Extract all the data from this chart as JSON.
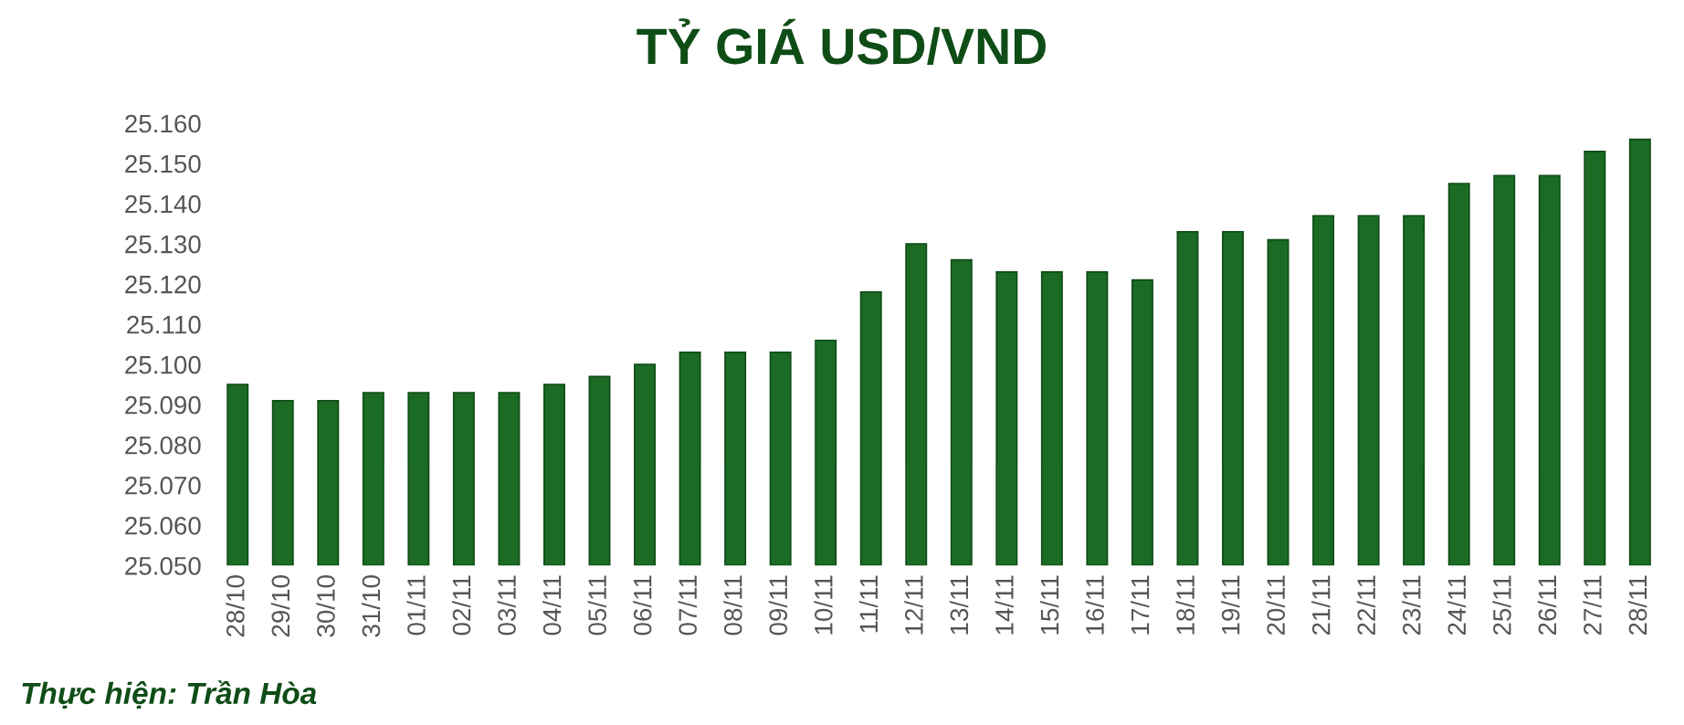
{
  "chart_data": {
    "type": "bar",
    "title": "TỶ GIÁ USD/VND",
    "categories": [
      "28/10",
      "29/10",
      "30/10",
      "31/10",
      "01/11",
      "02/11",
      "03/11",
      "04/11",
      "05/11",
      "06/11",
      "07/11",
      "08/11",
      "09/11",
      "10/11",
      "11/11",
      "12/11",
      "13/11",
      "14/11",
      "15/11",
      "16/11",
      "17/11",
      "18/11",
      "19/11",
      "20/11",
      "21/11",
      "22/11",
      "23/11",
      "24/11",
      "25/11",
      "26/11",
      "27/11",
      "28/11"
    ],
    "values": [
      25095,
      25091,
      25091,
      25093,
      25093,
      25093,
      25093,
      25095,
      25097,
      25100,
      25103,
      25103,
      25103,
      25106,
      25118,
      25130,
      25126,
      25123,
      25123,
      25123,
      25121,
      25133,
      25133,
      25131,
      25137,
      25137,
      25137,
      25145,
      25147,
      25147,
      25153,
      25156
    ],
    "color": "#1b6b24",
    "ylim": [
      25050,
      25160
    ],
    "yticks": [
      {
        "value": 25050,
        "label": "25.050"
      },
      {
        "value": 25060,
        "label": "25.060"
      },
      {
        "value": 25070,
        "label": "25.070"
      },
      {
        "value": 25080,
        "label": "25.080"
      },
      {
        "value": 25090,
        "label": "25.090"
      },
      {
        "value": 25100,
        "label": "25.100"
      },
      {
        "value": 25110,
        "label": "25.110"
      },
      {
        "value": 25120,
        "label": "25.120"
      },
      {
        "value": 25130,
        "label": "25.130"
      },
      {
        "value": 25140,
        "label": "25.140"
      },
      {
        "value": 25150,
        "label": "25.150"
      },
      {
        "value": 25160,
        "label": "25.160"
      }
    ],
    "grid": false,
    "annotations": [
      "Thực hiện: Trần Hòa"
    ]
  }
}
